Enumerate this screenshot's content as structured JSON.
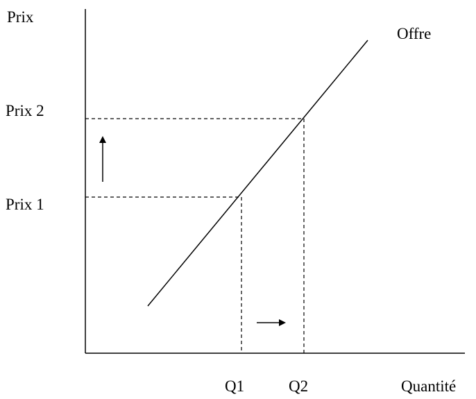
{
  "labels": {
    "y_axis": "Prix",
    "x_axis": "Quantité",
    "curve": "Offre",
    "price_1": "Prix 1",
    "price_2": "Prix 2",
    "quantity_1": "Q1",
    "quantity_2": "Q2"
  },
  "arrows": {
    "price_arrow": "up",
    "quantity_arrow": "right"
  },
  "colors": {
    "ink": "#000000",
    "background": "#ffffff"
  }
}
